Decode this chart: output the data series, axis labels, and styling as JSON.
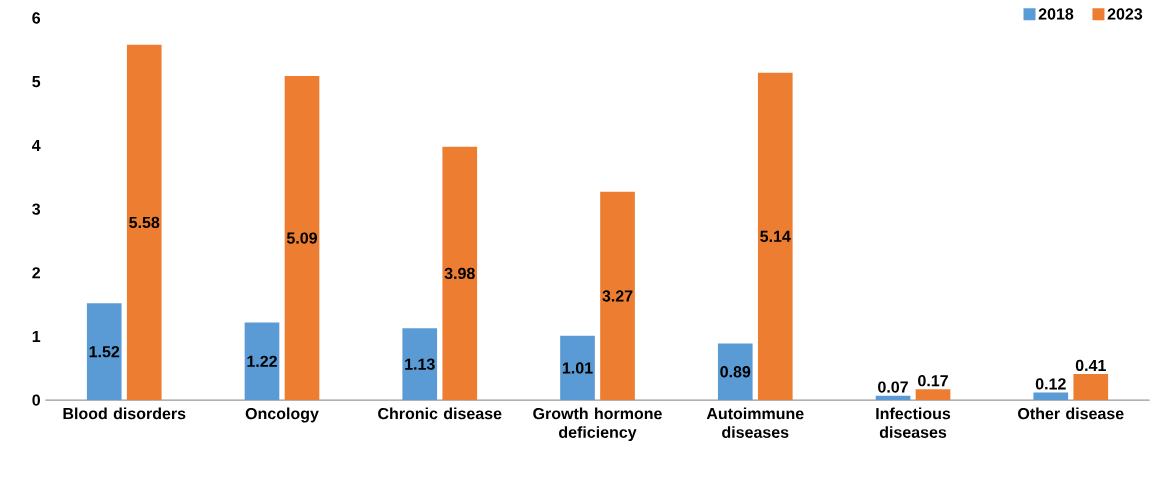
{
  "chart_data": {
    "type": "bar",
    "categories": [
      "Blood disorders",
      "Oncology",
      "Chronic disease",
      "Growth hormone deficiency",
      "Autoimmune diseases",
      "Infectious diseases",
      "Other disease"
    ],
    "series": [
      {
        "name": "2018",
        "color": "#5b9bd5",
        "values": [
          1.52,
          1.22,
          1.13,
          1.01,
          0.89,
          0.07,
          0.12
        ]
      },
      {
        "name": "2023",
        "color": "#ed7d31",
        "values": [
          5.58,
          5.09,
          3.98,
          3.27,
          5.14,
          0.17,
          0.41
        ]
      }
    ],
    "ylim": [
      0,
      6
    ],
    "yticks": [
      0,
      1,
      2,
      3,
      4,
      5,
      6
    ],
    "data_labels": true,
    "legend": "top right"
  }
}
